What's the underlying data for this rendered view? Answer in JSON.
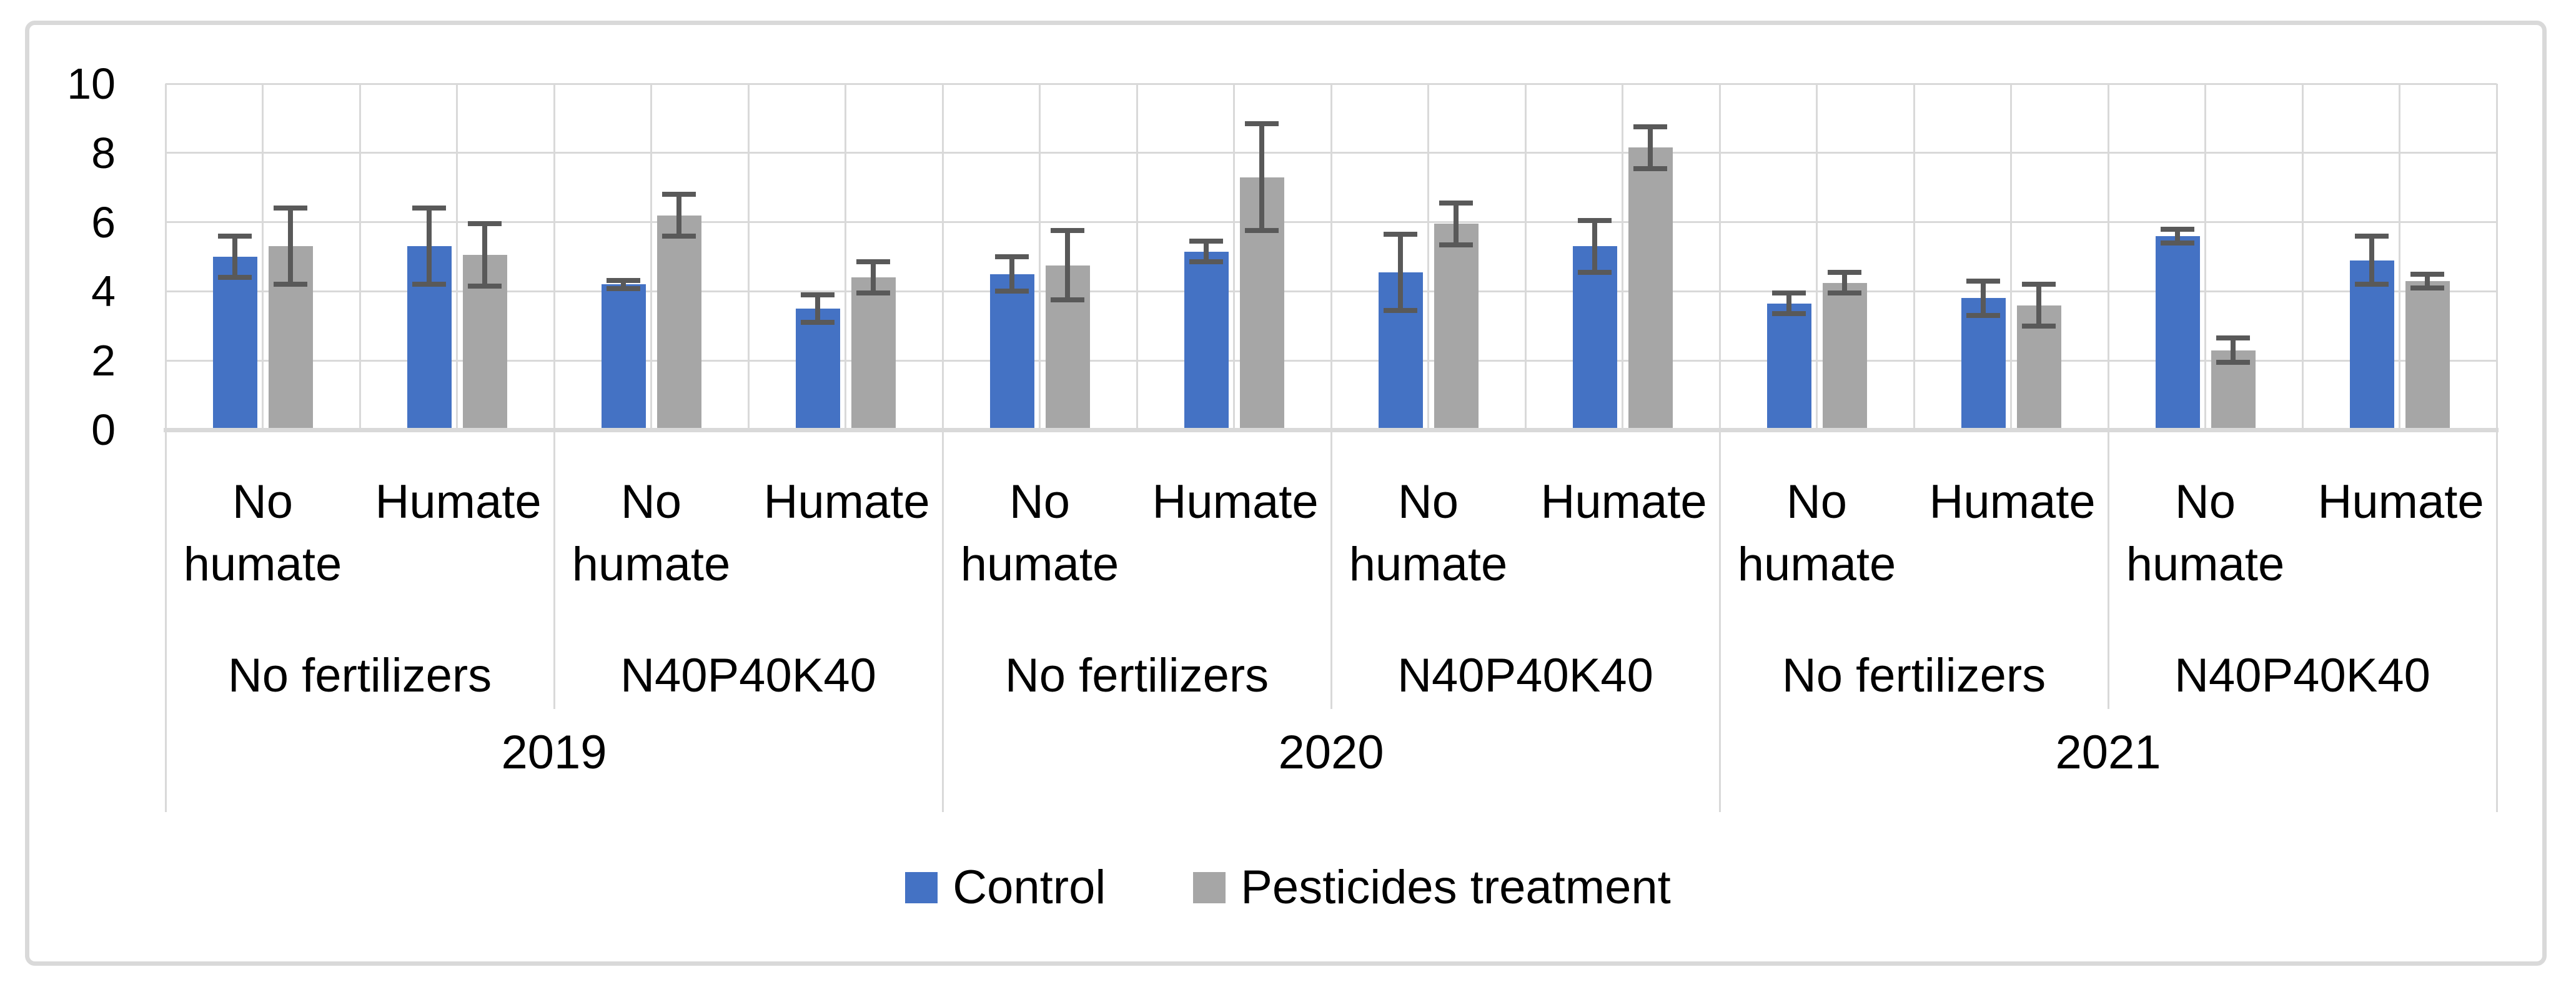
{
  "chart_data": {
    "type": "bar",
    "title": "",
    "xlabel": "",
    "ylabel": "",
    "ylim": [
      0,
      10
    ],
    "yticks": [
      "0",
      "2",
      "4",
      "6",
      "8",
      "10"
    ],
    "grid": true,
    "error_bars": true,
    "legend_position": "bottom",
    "groups": {
      "years": [
        "2019",
        "2020",
        "2021"
      ],
      "fertilizers_per_year": [
        "No fertilizers",
        "N40P40K40"
      ],
      "humates_per_fertilizer": [
        "No humate",
        "Humate"
      ]
    },
    "categories": [
      {
        "year": "2019",
        "fertilizer": "No fertilizers",
        "humate": "No humate"
      },
      {
        "year": "2019",
        "fertilizer": "No fertilizers",
        "humate": "Humate"
      },
      {
        "year": "2019",
        "fertilizer": "N40P40K40",
        "humate": "No humate"
      },
      {
        "year": "2019",
        "fertilizer": "N40P40K40",
        "humate": "Humate"
      },
      {
        "year": "2020",
        "fertilizer": "No fertilizers",
        "humate": "No humate"
      },
      {
        "year": "2020",
        "fertilizer": "No fertilizers",
        "humate": "Humate"
      },
      {
        "year": "2020",
        "fertilizer": "N40P40K40",
        "humate": "No humate"
      },
      {
        "year": "2020",
        "fertilizer": "N40P40K40",
        "humate": "Humate"
      },
      {
        "year": "2021",
        "fertilizer": "No fertilizers",
        "humate": "No humate"
      },
      {
        "year": "2021",
        "fertilizer": "No fertilizers",
        "humate": "Humate"
      },
      {
        "year": "2021",
        "fertilizer": "N40P40K40",
        "humate": "No humate"
      },
      {
        "year": "2021",
        "fertilizer": "N40P40K40",
        "humate": "Humate"
      }
    ],
    "series": [
      {
        "name": "Control",
        "color": "#4472C4",
        "values": [
          5.0,
          5.3,
          4.2,
          3.5,
          4.5,
          5.15,
          4.55,
          5.3,
          3.65,
          3.8,
          5.6,
          4.9
        ],
        "errors": [
          0.6,
          1.1,
          0.12,
          0.4,
          0.5,
          0.3,
          1.1,
          0.75,
          0.3,
          0.5,
          0.2,
          0.7
        ]
      },
      {
        "name": "Pesticides treatment",
        "color": "#A6A6A6",
        "values": [
          5.3,
          5.05,
          6.2,
          4.4,
          4.75,
          7.3,
          5.95,
          8.15,
          4.25,
          3.6,
          2.3,
          4.3
        ],
        "errors": [
          1.1,
          0.9,
          0.6,
          0.45,
          1.0,
          1.55,
          0.6,
          0.6,
          0.3,
          0.6,
          0.35,
          0.2
        ]
      }
    ]
  },
  "legend": {
    "items": [
      {
        "label": "Control",
        "swatch_color": "#4472C4"
      },
      {
        "label": "Pesticides treatment",
        "swatch_color": "#A6A6A6"
      }
    ]
  },
  "style_colors": {
    "background": "#FFFFFF",
    "border": "#D9D9D9",
    "gridline": "#D9D9D9",
    "axis_line": "#D9D9D9",
    "error_bar": "#595959",
    "text": "#000000"
  }
}
